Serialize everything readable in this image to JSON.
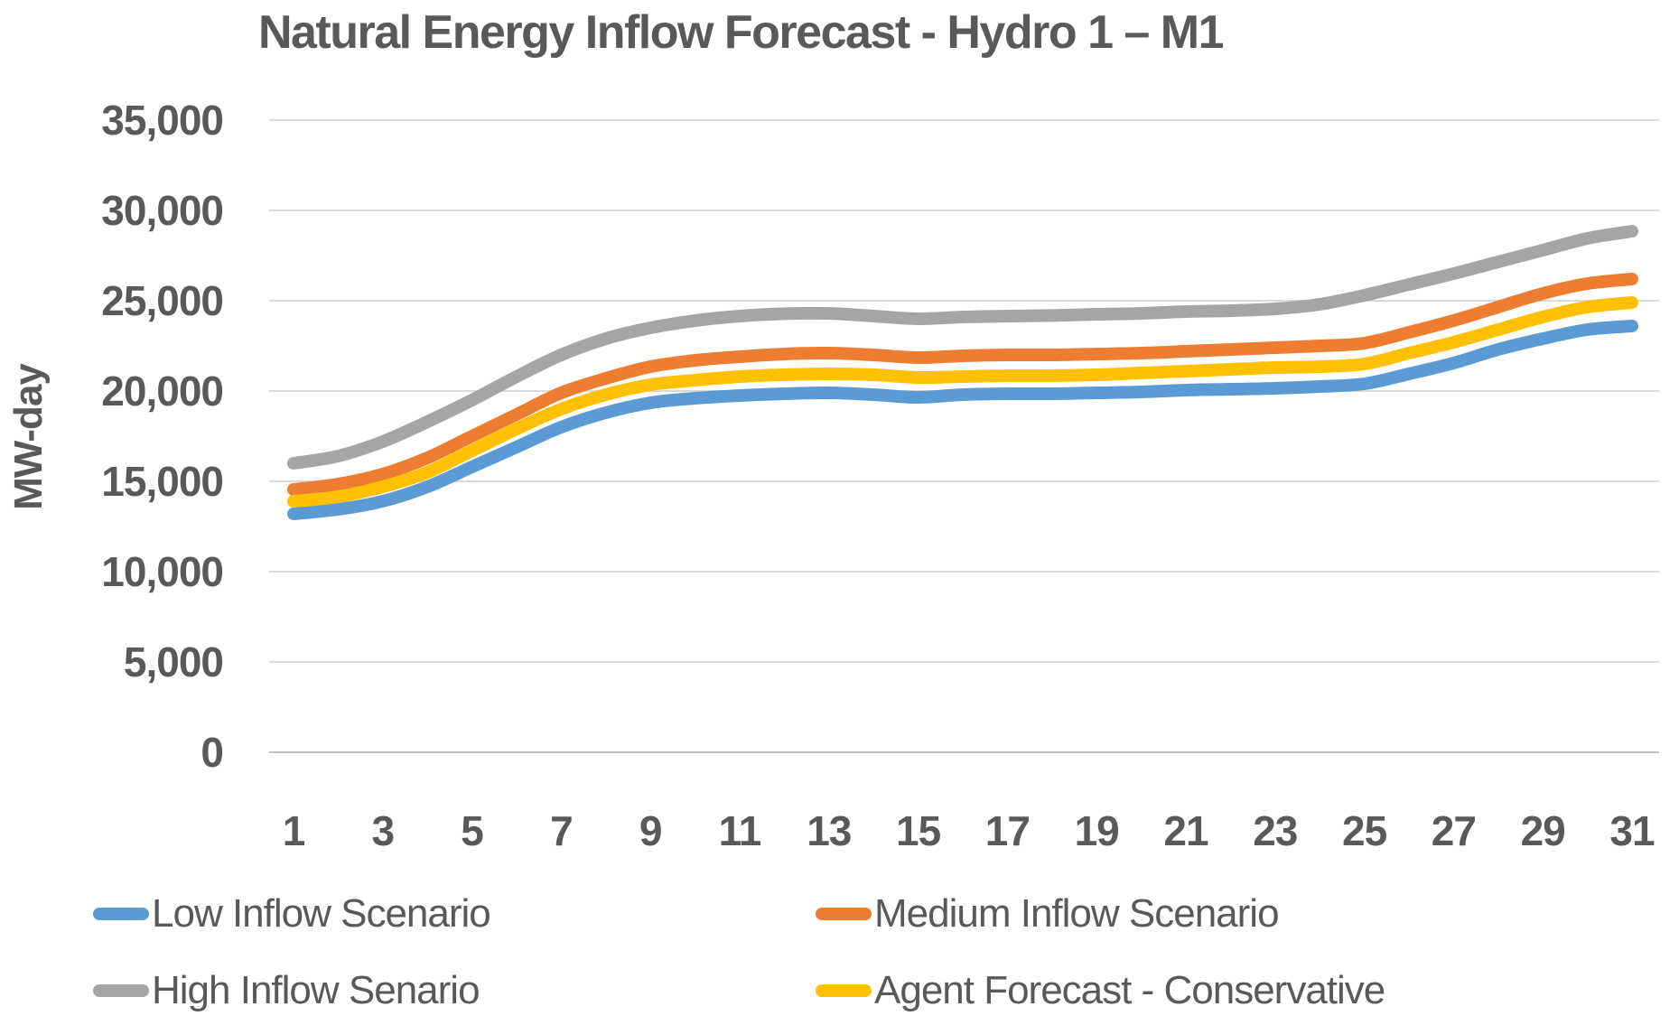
{
  "title": "Natural Energy Inflow Forecast - Hydro 1 – M1",
  "colors": {
    "text": "#595959",
    "gridline": "#D9D9D9",
    "axis_line": "#BFBFBF",
    "blue": "#5B9BD5",
    "orange": "#ED7D31",
    "gray": "#A5A5A5",
    "yellow": "#FFC000"
  },
  "chart_data": {
    "type": "line",
    "title": "Natural Energy Inflow Forecast - Hydro 1 – M1",
    "xlabel": "",
    "ylabel": "MW-day",
    "x": [
      1,
      2,
      3,
      4,
      5,
      6,
      7,
      8,
      9,
      10,
      11,
      12,
      13,
      14,
      15,
      16,
      17,
      18,
      19,
      20,
      21,
      22,
      23,
      24,
      25,
      26,
      27,
      28,
      29,
      30,
      31
    ],
    "x_tick_labels": [
      "1",
      "3",
      "5",
      "7",
      "9",
      "11",
      "13",
      "15",
      "17",
      "19",
      "21",
      "23",
      "25",
      "27",
      "29",
      "31"
    ],
    "x_ticks": [
      1,
      3,
      5,
      7,
      9,
      11,
      13,
      15,
      17,
      19,
      21,
      23,
      25,
      27,
      29,
      31
    ],
    "ylim": [
      0,
      35000
    ],
    "y_ticks": [
      0,
      5000,
      10000,
      15000,
      20000,
      25000,
      30000,
      35000
    ],
    "y_tick_labels": [
      "0",
      "5,000",
      "10,000",
      "15,000",
      "20,000",
      "25,000",
      "30,000",
      "35,000"
    ],
    "grid": "horizontal",
    "legend_position": "bottom",
    "line_smoothing": true,
    "series": [
      {
        "name": "Low Inflow Scenario",
        "color": "#5B9BD5",
        "values": [
          13200,
          13450,
          13900,
          14700,
          15800,
          16900,
          18000,
          18800,
          19350,
          19600,
          19750,
          19850,
          19900,
          19800,
          19650,
          19800,
          19850,
          19850,
          19900,
          19950,
          20050,
          20100,
          20150,
          20250,
          20400,
          20950,
          21550,
          22300,
          22900,
          23400,
          23600
        ]
      },
      {
        "name": "Medium Inflow Scenario",
        "color": "#ED7D31",
        "values": [
          14550,
          14850,
          15400,
          16300,
          17500,
          18700,
          19900,
          20700,
          21350,
          21700,
          21900,
          22050,
          22100,
          22000,
          21850,
          21950,
          22000,
          22000,
          22050,
          22100,
          22200,
          22300,
          22400,
          22500,
          22650,
          23250,
          23900,
          24650,
          25400,
          25950,
          26200
        ]
      },
      {
        "name": "High Inflow Senario",
        "color": "#A5A5A5",
        "values": [
          16000,
          16400,
          17200,
          18300,
          19500,
          20800,
          22000,
          22900,
          23500,
          23900,
          24150,
          24280,
          24300,
          24150,
          24000,
          24100,
          24150,
          24180,
          24250,
          24300,
          24400,
          24450,
          24550,
          24800,
          25300,
          25900,
          26500,
          27150,
          27800,
          28450,
          28850
        ]
      },
      {
        "name": "Agent Forecast - Conservative",
        "color": "#FFC000",
        "values": [
          13900,
          14150,
          14700,
          15500,
          16700,
          17900,
          19000,
          19800,
          20350,
          20600,
          20800,
          20900,
          20950,
          20900,
          20750,
          20800,
          20850,
          20850,
          20900,
          21000,
          21100,
          21200,
          21300,
          21350,
          21500,
          22100,
          22700,
          23400,
          24100,
          24650,
          24900
        ]
      }
    ]
  },
  "legend": {
    "items": [
      {
        "series_index": 0,
        "label": "Low Inflow Scenario"
      },
      {
        "series_index": 1,
        "label": "Medium Inflow Scenario"
      },
      {
        "series_index": 2,
        "label": "High Inflow Senario"
      },
      {
        "series_index": 3,
        "label": "Agent Forecast - Conservative"
      }
    ]
  }
}
